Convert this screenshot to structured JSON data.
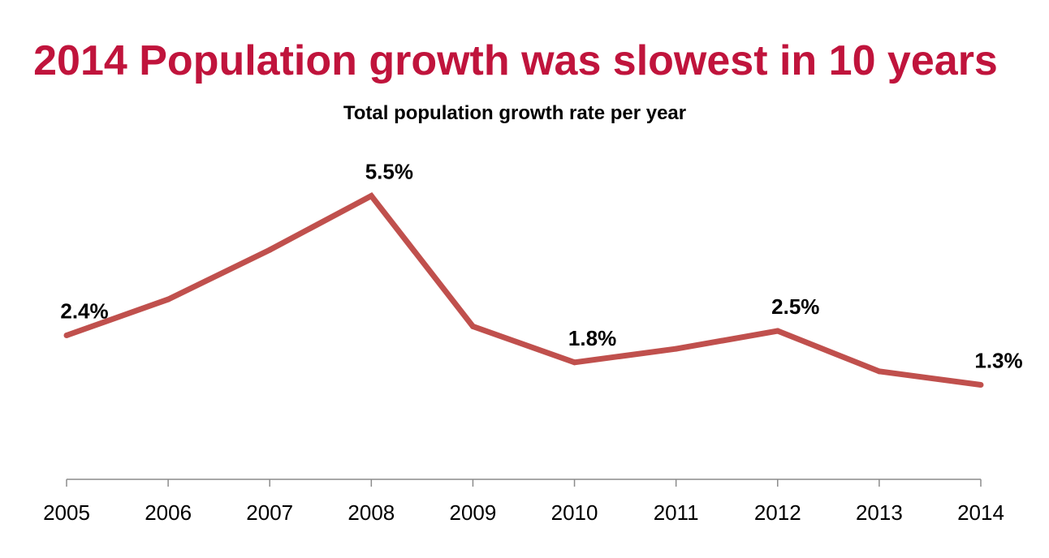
{
  "chart_data": {
    "type": "line",
    "title": "2014 Population growth was slowest in 10 years",
    "subtitle": "Total population growth rate per year",
    "xlabel": "",
    "ylabel": "",
    "categories": [
      "2005",
      "2006",
      "2007",
      "2008",
      "2009",
      "2010",
      "2011",
      "2012",
      "2013",
      "2014"
    ],
    "series": [
      {
        "values": [
          2.4,
          3.2,
          4.3,
          5.5,
          2.6,
          1.8,
          2.1,
          2.5,
          1.6,
          1.3
        ],
        "unit": "%",
        "color": "#c0504d"
      }
    ],
    "data_labels": [
      {
        "index": 0,
        "text": "2.4%"
      },
      {
        "index": 3,
        "text": "5.5%"
      },
      {
        "index": 5,
        "text": "1.8%"
      },
      {
        "index": 7,
        "text": "2.5%"
      },
      {
        "index": 9,
        "text": "1.3%"
      }
    ],
    "ylim": [
      -0.8,
      5.6
    ],
    "y_axis_shown": false,
    "grid": false,
    "legend": "none"
  }
}
